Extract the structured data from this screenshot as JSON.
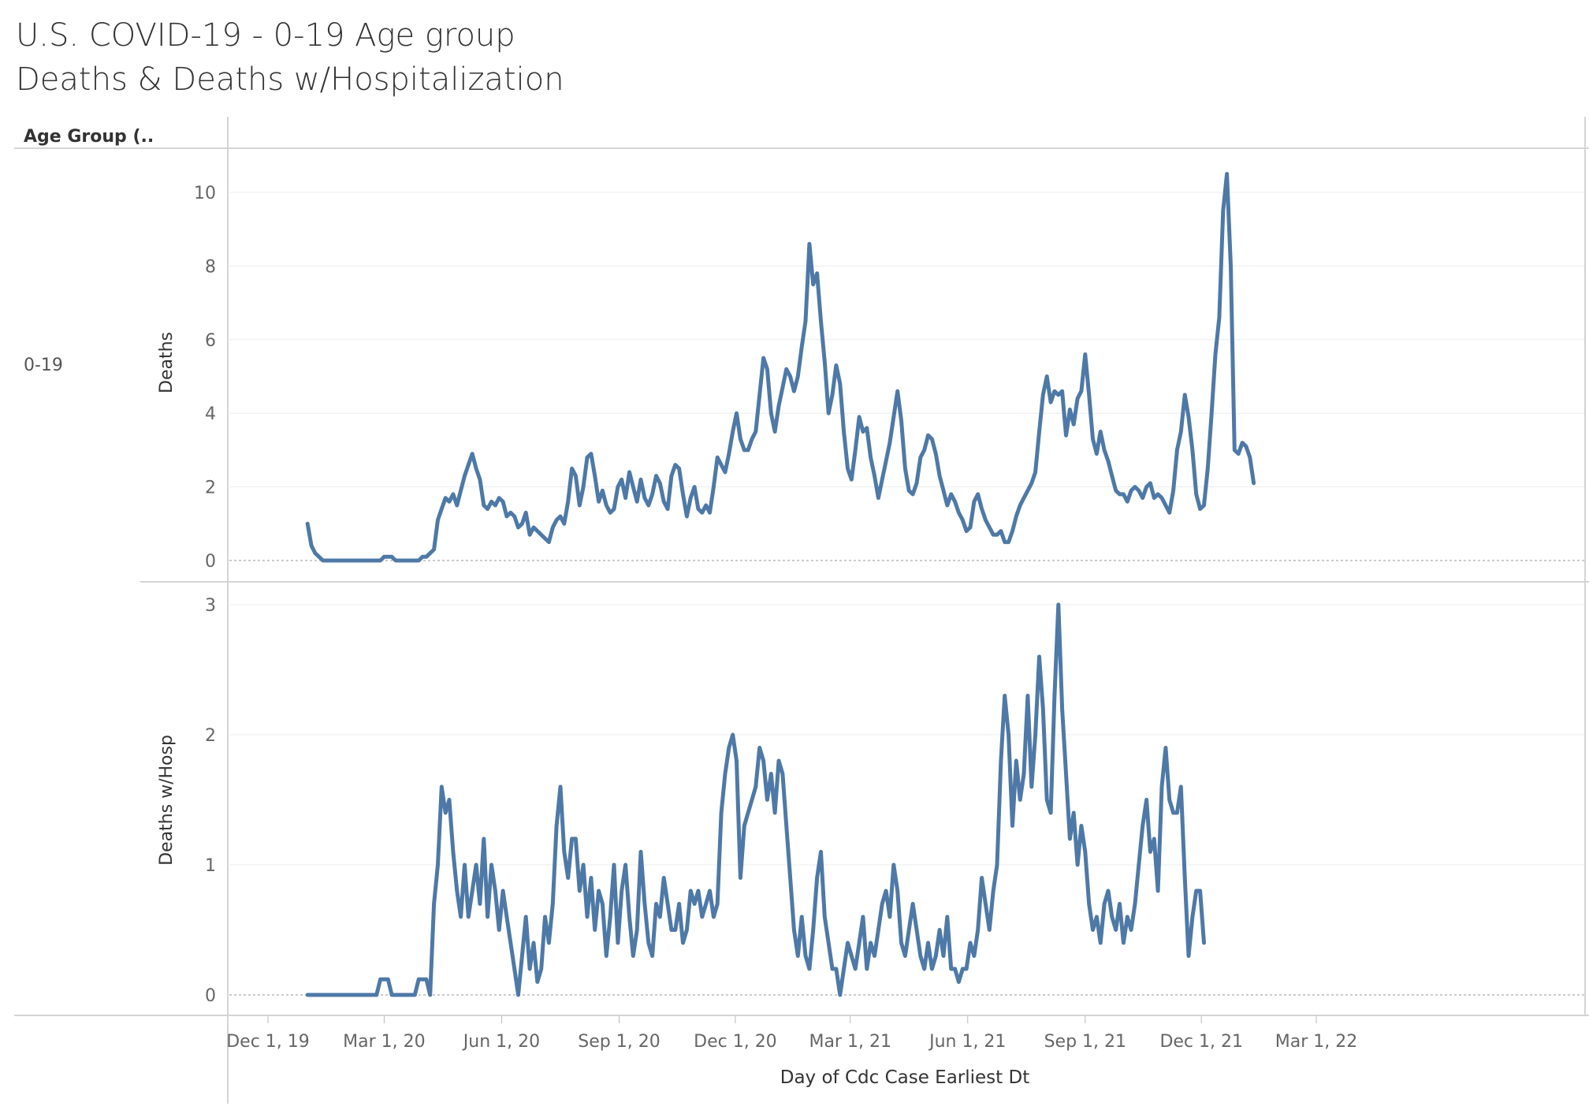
{
  "title_line1": "U.S. COVID-19 - 0-19 Age group",
  "title_line2": "Deaths & Deaths w/Hospitalization",
  "row_header": "Age Group (..",
  "row_label": "0-19",
  "x_axis_title": "Day of Cdc Case Earliest Dt",
  "line_color": "#4e79a7",
  "chart_data": [
    {
      "type": "line",
      "ylabel": "Deaths",
      "yticks": [
        0,
        2,
        4,
        6,
        8,
        10
      ],
      "ylim": [
        0,
        10.8
      ],
      "xticks": [
        "Dec 1, 19",
        "Mar 1, 20",
        "Jun 1, 20",
        "Sep 1, 20",
        "Dec 1, 20",
        "Mar 1, 21",
        "Jun 1, 21",
        "Sep 1, 21",
        "Dec 1, 21",
        "Mar 1, 22"
      ],
      "x_start": "2020-01-01",
      "x_step_days": 3,
      "values": [
        1.0,
        0.4,
        0.2,
        0.1,
        0,
        0,
        0,
        0,
        0,
        0,
        0,
        0,
        0,
        0,
        0,
        0,
        0,
        0,
        0,
        0,
        0.1,
        0.1,
        0.1,
        0,
        0,
        0,
        0,
        0,
        0,
        0,
        0.1,
        0.1,
        0.2,
        0.3,
        1.1,
        1.4,
        1.7,
        1.6,
        1.8,
        1.5,
        1.9,
        2.3,
        2.6,
        2.9,
        2.5,
        2.2,
        1.5,
        1.4,
        1.6,
        1.5,
        1.7,
        1.6,
        1.2,
        1.3,
        1.2,
        0.9,
        1.0,
        1.3,
        0.7,
        0.9,
        0.8,
        0.7,
        0.6,
        0.5,
        0.9,
        1.1,
        1.2,
        1.0,
        1.6,
        2.5,
        2.3,
        1.5,
        2.0,
        2.8,
        2.9,
        2.3,
        1.6,
        1.9,
        1.5,
        1.3,
        1.4,
        2.0,
        2.2,
        1.7,
        2.4,
        2.0,
        1.6,
        2.2,
        1.7,
        1.5,
        1.8,
        2.3,
        2.1,
        1.6,
        1.4,
        2.3,
        2.6,
        2.5,
        1.8,
        1.2,
        1.7,
        2.0,
        1.4,
        1.3,
        1.5,
        1.3,
        2.0,
        2.8,
        2.6,
        2.4,
        2.9,
        3.5,
        4.0,
        3.3,
        3.0,
        3.0,
        3.3,
        3.5,
        4.5,
        5.5,
        5.2,
        4.0,
        3.5,
        4.2,
        4.7,
        5.2,
        5.0,
        4.6,
        5.0,
        5.8,
        6.5,
        8.6,
        7.5,
        7.8,
        6.5,
        5.4,
        4.0,
        4.5,
        5.3,
        4.8,
        3.5,
        2.5,
        2.2,
        3.0,
        3.9,
        3.5,
        3.6,
        2.8,
        2.3,
        1.7,
        2.2,
        2.7,
        3.2,
        3.9,
        4.6,
        3.8,
        2.5,
        1.9,
        1.8,
        2.1,
        2.8,
        3.0,
        3.4,
        3.3,
        2.9,
        2.3,
        1.9,
        1.5,
        1.8,
        1.6,
        1.3,
        1.1,
        0.8,
        0.9,
        1.6,
        1.8,
        1.4,
        1.1,
        0.9,
        0.7,
        0.7,
        0.8,
        0.5,
        0.5,
        0.8,
        1.2,
        1.5,
        1.7,
        1.9,
        2.1,
        2.4,
        3.5,
        4.5,
        5.0,
        4.3,
        4.6,
        4.5,
        4.6,
        3.4,
        4.1,
        3.7,
        4.4,
        4.6,
        5.6,
        4.5,
        3.3,
        2.9,
        3.5,
        3.0,
        2.7,
        2.3,
        1.9,
        1.8,
        1.8,
        1.6,
        1.9,
        2.0,
        1.9,
        1.7,
        2.0,
        2.1,
        1.7,
        1.8,
        1.7,
        1.5,
        1.3,
        1.9,
        3.0,
        3.5,
        4.5,
        3.9,
        3.0,
        1.8,
        1.4,
        1.5,
        2.5,
        4.0,
        5.6,
        6.6,
        9.5,
        10.5,
        8.0,
        3.0,
        2.9,
        3.2,
        3.1,
        2.8,
        2.1
      ]
    },
    {
      "type": "line",
      "ylabel": "Deaths w/Hosp",
      "yticks": [
        0,
        1,
        2,
        3
      ],
      "ylim": [
        0,
        3.15
      ],
      "xticks": [
        "Dec 1, 19",
        "Mar 1, 20",
        "Jun 1, 20",
        "Sep 1, 20",
        "Dec 1, 20",
        "Mar 1, 21",
        "Jun 1, 21",
        "Sep 1, 21",
        "Dec 1, 21",
        "Mar 1, 22"
      ],
      "x_start": "2020-01-01",
      "x_step_days": 3,
      "values": [
        0,
        0,
        0,
        0,
        0,
        0,
        0,
        0,
        0,
        0,
        0,
        0,
        0,
        0,
        0,
        0,
        0,
        0,
        0,
        0.12,
        0.12,
        0.12,
        0,
        0,
        0,
        0,
        0,
        0,
        0,
        0.12,
        0.12,
        0.12,
        0,
        0.7,
        1.0,
        1.6,
        1.4,
        1.5,
        1.1,
        0.8,
        0.6,
        1.0,
        0.6,
        0.8,
        1.0,
        0.7,
        1.2,
        0.6,
        1.0,
        0.8,
        0.5,
        0.8,
        0.6,
        0.4,
        0.2,
        0,
        0.3,
        0.6,
        0.2,
        0.4,
        0.1,
        0.2,
        0.6,
        0.4,
        0.7,
        1.3,
        1.6,
        1.1,
        0.9,
        1.2,
        1.2,
        0.8,
        1.0,
        0.6,
        0.9,
        0.5,
        0.8,
        0.7,
        0.3,
        0.6,
        1.0,
        0.4,
        0.8,
        1.0,
        0.6,
        0.3,
        0.5,
        1.1,
        0.7,
        0.4,
        0.3,
        0.7,
        0.6,
        0.9,
        0.7,
        0.5,
        0.5,
        0.7,
        0.4,
        0.5,
        0.8,
        0.7,
        0.8,
        0.6,
        0.7,
        0.8,
        0.6,
        0.7,
        1.4,
        1.7,
        1.9,
        2.0,
        1.8,
        0.9,
        1.3,
        1.4,
        1.5,
        1.6,
        1.9,
        1.8,
        1.5,
        1.7,
        1.4,
        1.8,
        1.7,
        1.3,
        0.9,
        0.5,
        0.3,
        0.6,
        0.3,
        0.2,
        0.5,
        0.9,
        1.1,
        0.6,
        0.4,
        0.2,
        0.2,
        0,
        0.2,
        0.4,
        0.3,
        0.2,
        0.4,
        0.6,
        0.2,
        0.4,
        0.3,
        0.5,
        0.7,
        0.8,
        0.6,
        1.0,
        0.8,
        0.4,
        0.3,
        0.5,
        0.7,
        0.5,
        0.3,
        0.2,
        0.4,
        0.2,
        0.3,
        0.5,
        0.3,
        0.6,
        0.2,
        0.2,
        0.1,
        0.2,
        0.2,
        0.4,
        0.3,
        0.5,
        0.9,
        0.7,
        0.5,
        0.8,
        1.0,
        1.8,
        2.3,
        2.0,
        1.3,
        1.8,
        1.5,
        1.7,
        2.3,
        1.6,
        2.0,
        2.6,
        2.2,
        1.5,
        1.4,
        2.3,
        3.0,
        2.2,
        1.7,
        1.2,
        1.4,
        1.0,
        1.3,
        1.1,
        0.7,
        0.5,
        0.6,
        0.4,
        0.7,
        0.8,
        0.6,
        0.5,
        0.7,
        0.4,
        0.6,
        0.5,
        0.7,
        1.0,
        1.3,
        1.5,
        1.1,
        1.2,
        0.8,
        1.6,
        1.9,
        1.5,
        1.4,
        1.4,
        1.6,
        0.9,
        0.3,
        0.6,
        0.8,
        0.8,
        0.4
      ]
    }
  ]
}
